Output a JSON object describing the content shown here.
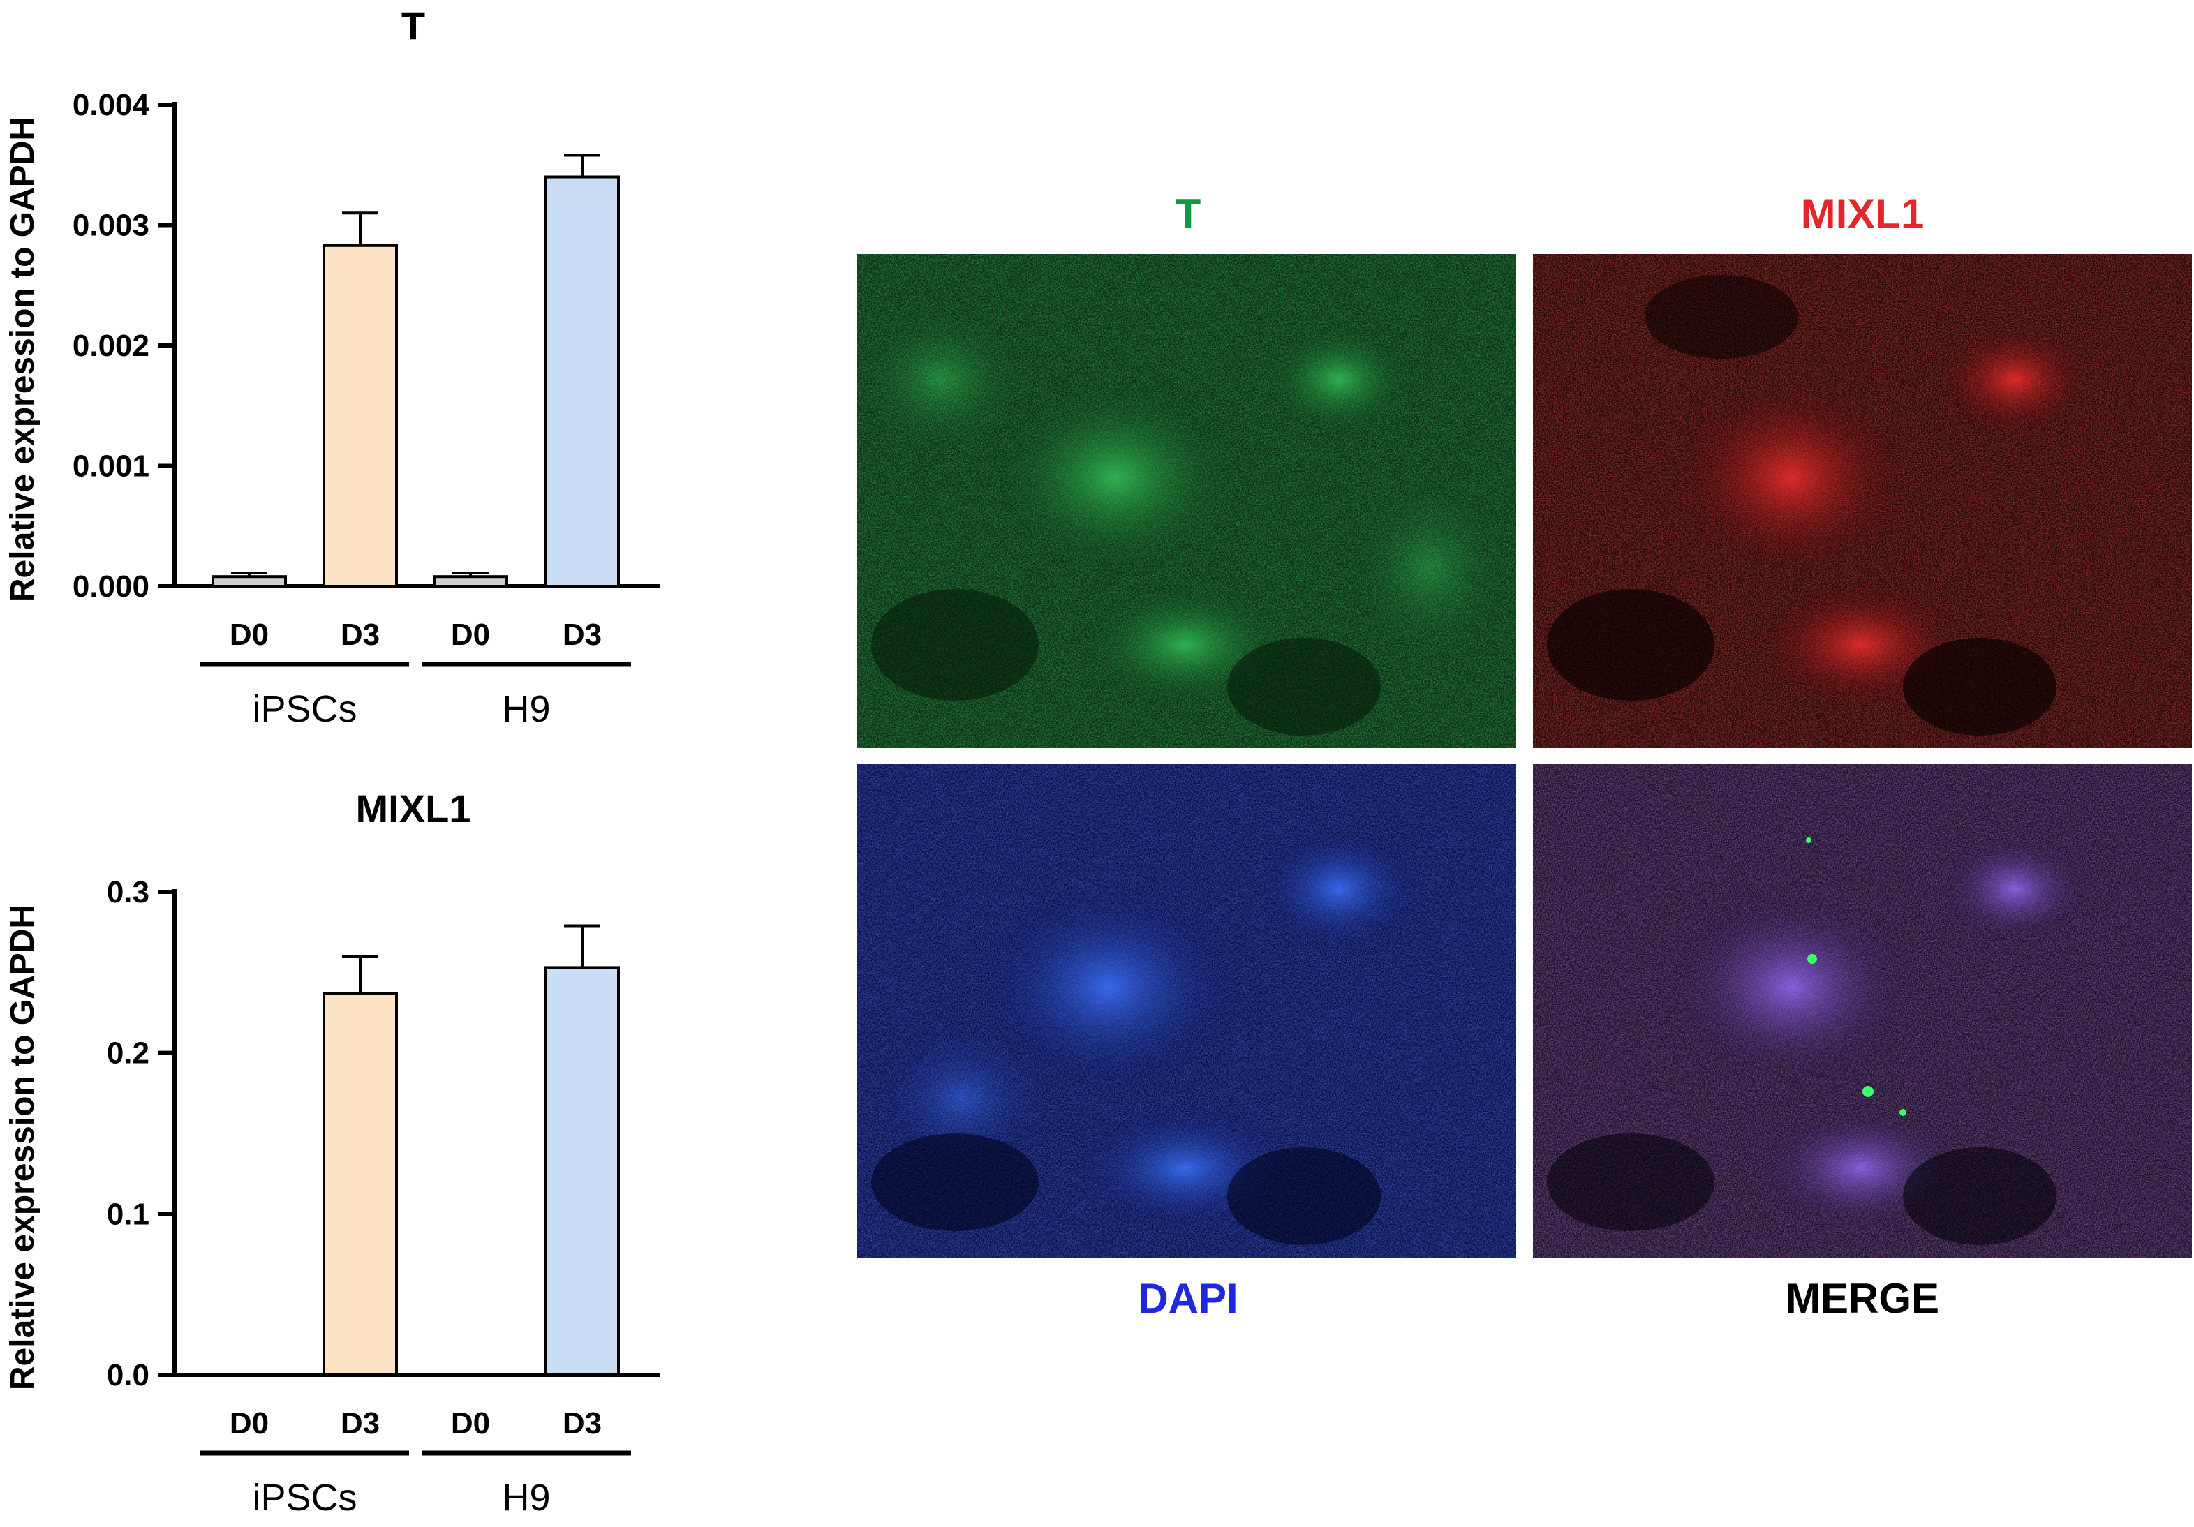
{
  "chart_data": [
    {
      "type": "bar",
      "title": "T",
      "ylabel": "Relative expression to GAPDH",
      "categories": [
        "D0",
        "D3",
        "D0",
        "D3"
      ],
      "groups": [
        {
          "name": "iPSCs",
          "categories": [
            "D0",
            "D3"
          ]
        },
        {
          "name": "H9",
          "categories": [
            "D0",
            "D3"
          ]
        }
      ],
      "values": [
        8e-05,
        0.00283,
        8e-05,
        0.0034
      ],
      "errors": [
        3e-05,
        0.00027,
        3e-05,
        0.00018
      ],
      "bar_colors": [
        "#cfcfcf",
        "#fde3c6",
        "#cfcfcf",
        "#c9ddf5"
      ],
      "ylim": [
        0,
        0.004
      ],
      "yticks": [
        "0.000",
        "0.001",
        "0.002",
        "0.003",
        "0.004"
      ]
    },
    {
      "type": "bar",
      "title": "MIXL1",
      "ylabel": "Relative expression to GAPDH",
      "categories": [
        "D0",
        "D3",
        "D0",
        "D3"
      ],
      "groups": [
        {
          "name": "iPSCs",
          "categories": [
            "D0",
            "D3"
          ]
        },
        {
          "name": "H9",
          "categories": [
            "D0",
            "D3"
          ]
        }
      ],
      "values": [
        0,
        0.237,
        0,
        0.253
      ],
      "errors": [
        0,
        0.023,
        0,
        0.026
      ],
      "bar_colors": [
        "#cfcfcf",
        "#fde3c6",
        "#cfcfcf",
        "#c9ddf5"
      ],
      "ylim": [
        0,
        0.3
      ],
      "yticks": [
        "0.0",
        "0.1",
        "0.2",
        "0.3"
      ]
    }
  ],
  "micrographs": {
    "labels": {
      "green": "T",
      "red": "MIXL1",
      "blue": "DAPI",
      "merge": "MERGE"
    },
    "colors": {
      "green": "#12964a",
      "red": "#e3262b",
      "blue": "#1f27e0",
      "merge": "#000000"
    }
  }
}
